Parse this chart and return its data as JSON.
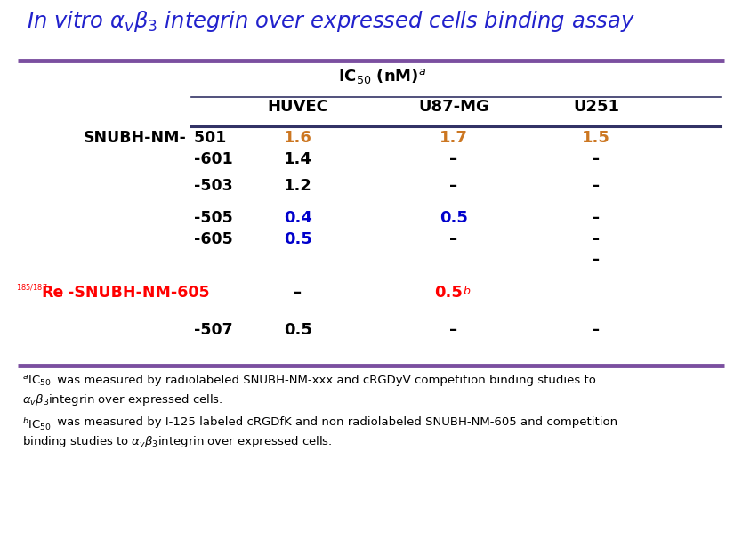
{
  "title_color": "#2222CC",
  "purple_line_color": "#7B4FA0",
  "bg_color": "#FFFFFF",
  "fig_width": 8.34,
  "fig_height": 6.16,
  "rows": [
    {
      "label_prefix": "SNUBH-NM-",
      "label_number": " 501",
      "huvec": "1.6",
      "huvec_color": "#CC7722",
      "u87mg": "1.7",
      "u87mg_color": "#CC7722",
      "u251": "1.5",
      "u251_color": "#CC7722",
      "re_row": false
    },
    {
      "label_prefix": "",
      "label_number": "-601",
      "huvec": "1.4",
      "huvec_color": "#000000",
      "u87mg": "–",
      "u87mg_color": "#000000",
      "u251": "–",
      "u251_color": "#000000",
      "re_row": false
    },
    {
      "label_prefix": "",
      "label_number": "-503",
      "huvec": "1.2",
      "huvec_color": "#000000",
      "u87mg": "–",
      "u87mg_color": "#000000",
      "u251": "–",
      "u251_color": "#000000",
      "re_row": false
    },
    {
      "label_prefix": "",
      "label_number": "-505",
      "huvec": "0.4",
      "huvec_color": "#0000CC",
      "u87mg": "0.5",
      "u87mg_color": "#0000CC",
      "u251": "–",
      "u251_color": "#000000",
      "re_row": false
    },
    {
      "label_prefix": "",
      "label_number": "-605",
      "huvec": "0.5",
      "huvec_color": "#0000CC",
      "u87mg": "–",
      "u87mg_color": "#000000",
      "u251": "–",
      "u251_color": "#000000",
      "re_row": false
    },
    {
      "label_prefix": "",
      "label_number": "",
      "huvec": "",
      "huvec_color": "#000000",
      "u87mg": "",
      "u87mg_color": "#000000",
      "u251": "–",
      "u251_color": "#000000",
      "re_row": false
    },
    {
      "label_prefix": "185/187Re -SNUBH-NM-605",
      "label_number": "",
      "huvec": "–",
      "huvec_color": "#000000",
      "u87mg": "0.5",
      "u87mg_color": "#DD0000",
      "u251": "",
      "u251_color": "#000000",
      "re_row": true
    },
    {
      "label_prefix": "",
      "label_number": "-507",
      "huvec": "0.5",
      "huvec_color": "#000000",
      "u87mg": "–",
      "u87mg_color": "#000000",
      "u251": "–",
      "u251_color": "#000000",
      "re_row": false
    }
  ]
}
